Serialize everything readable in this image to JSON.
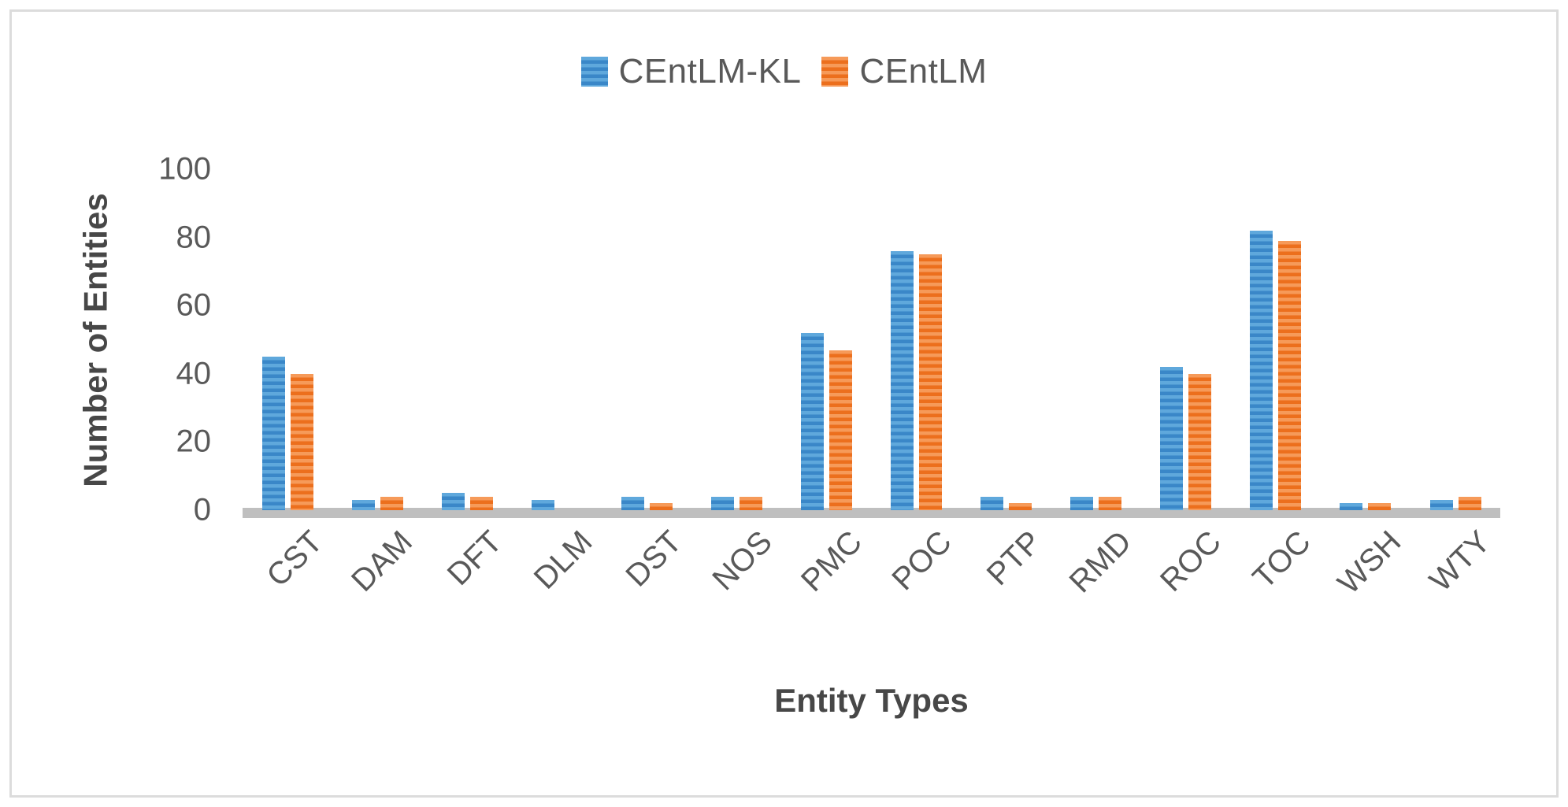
{
  "figure": {
    "background": "#ffffff",
    "border_color": "#dcdcdc",
    "text_color": "#595959",
    "axis_line_color": "#bfbfbf"
  },
  "chart_data": {
    "type": "bar",
    "title": "",
    "xlabel": "Entity Types",
    "ylabel": "Number of Entities",
    "categories": [
      "CST",
      "DAM",
      "DFT",
      "DLM",
      "DST",
      "NOS",
      "PMC",
      "POC",
      "PTP",
      "RMD",
      "ROC",
      "TOC",
      "WSH",
      "WTY"
    ],
    "series": [
      {
        "name": "CEntLM-KL",
        "color": "#4e9bd5",
        "stripe_light": "#5fa8dc",
        "stripe_dark": "#3a87c8",
        "values": [
          45,
          3,
          5,
          3,
          4,
          4,
          52,
          76,
          4,
          4,
          42,
          82,
          2,
          3
        ]
      },
      {
        "name": "CEntLM",
        "color": "#ed7d31",
        "stripe_light": "#f69a59",
        "stripe_dark": "#ec6f1d",
        "values": [
          40,
          4,
          4,
          0,
          2,
          4,
          47,
          75,
          2,
          4,
          40,
          79,
          2,
          4
        ]
      }
    ],
    "ylim": [
      0,
      100
    ],
    "y_ticks": [
      0,
      20,
      40,
      60,
      80,
      100
    ],
    "grid": false,
    "legend_position": "top-center"
  }
}
